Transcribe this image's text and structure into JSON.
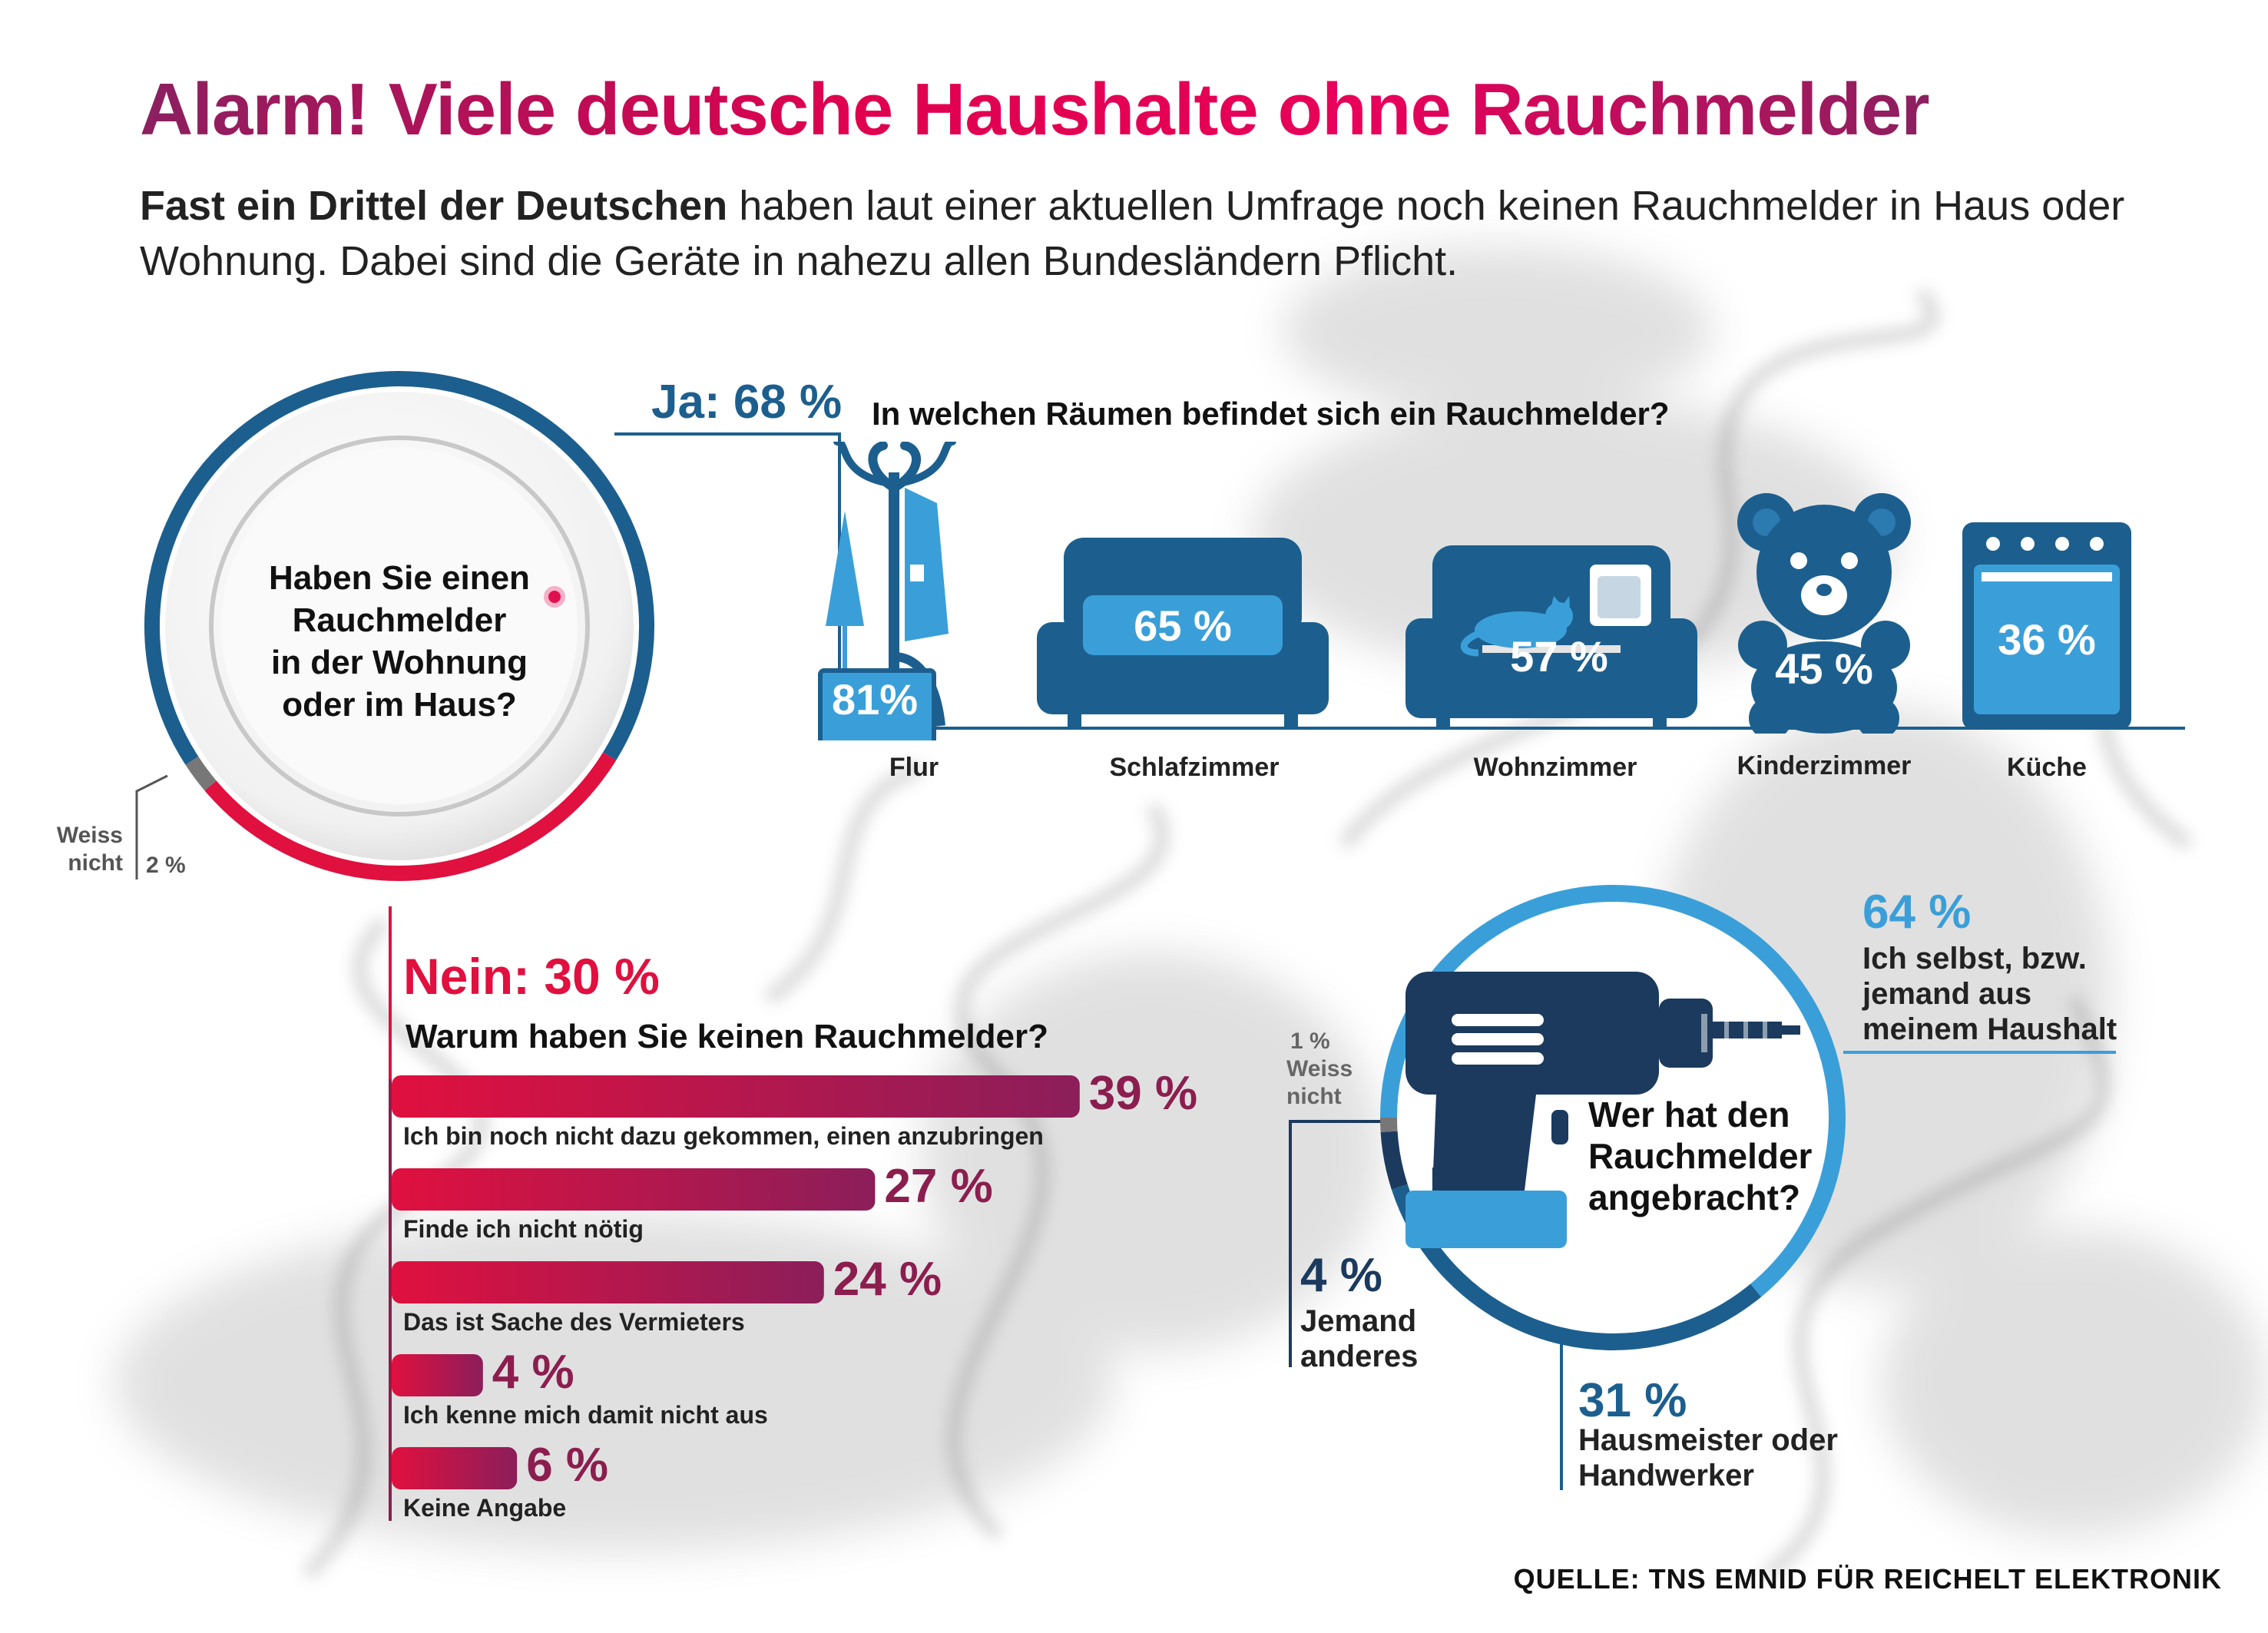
{
  "title": "Alarm! Viele deutsche Haushalte ohne Rauchmelder",
  "subtitle": {
    "lead": "Fast ein Drittel der Deutschen",
    "rest": " haben laut einer aktuellen Umfrage noch keinen Rauchmelder in Haus oder Wohnung. Dabei sind die Geräte in nahezu allen Bundesländern Pflicht."
  },
  "colors": {
    "light_blue": "#3a9fd9",
    "mid_blue": "#1c5f8e",
    "navy": "#1b3a5e",
    "red": "#e0103f",
    "plum": "#8b1e4f",
    "gray": "#777777"
  },
  "icons": [
    "coat-rack-icon",
    "umbrella-icon",
    "sofa-icon",
    "cat-icon",
    "teddy-bear-icon",
    "stove-icon",
    "drill-icon"
  ],
  "chart_data": [
    {
      "type": "pie",
      "question": [
        "Haben Sie einen",
        "Rauchmelder",
        "in der Wohnung",
        "oder im Haus?"
      ],
      "slices": [
        {
          "label": "Ja:",
          "pct_text": "68 %",
          "value": 68
        },
        {
          "label": "Nein:",
          "pct_text": "30 %",
          "value": 30
        },
        {
          "label": "Weiss nicht",
          "label_lines": [
            "Weiss",
            "nicht"
          ],
          "pct_text": "2 %",
          "value": 2
        }
      ]
    },
    {
      "type": "bar",
      "title": "In welchen Räumen befindet sich ein Rauchmelder?",
      "categories": [
        "Flur",
        "Schlafzimmer",
        "Wohnzimmer",
        "Kinderzimmer",
        "Küche"
      ],
      "values": [
        81,
        65,
        57,
        45,
        36
      ],
      "value_labels": [
        "81%",
        "65 %",
        "57 %",
        "45 %",
        "36 %"
      ]
    },
    {
      "type": "bar",
      "title": "Warum haben Sie keinen Rauchmelder?",
      "categories": [
        "Ich bin noch nicht dazu gekommen, einen anzubringen",
        "Finde ich nicht nötig",
        "Das ist Sache des Vermieters",
        "Ich kenne mich damit nicht aus",
        "Keine Angabe"
      ],
      "values": [
        39,
        27,
        24,
        4,
        6
      ],
      "value_labels": [
        "39 %",
        "27 %",
        "24 %",
        "4 %",
        "6 %"
      ]
    },
    {
      "type": "pie",
      "question": [
        "Wer hat den",
        "Rauchmelder",
        "angebracht?"
      ],
      "slices": [
        {
          "pct_text": "64 %",
          "label_lines": [
            "Ich selbst, bzw.",
            "jemand aus",
            "meinem Haushalt"
          ],
          "value": 64
        },
        {
          "pct_text": "31 %",
          "label_lines": [
            "Hausmeister oder",
            "Handwerker"
          ],
          "value": 31
        },
        {
          "pct_text": "4 %",
          "label_lines": [
            "Jemand",
            "anderes"
          ],
          "value": 4
        },
        {
          "pct_text": "1 %",
          "label_lines": [
            "Weiss",
            "nicht"
          ],
          "value": 1
        }
      ]
    }
  ],
  "source": "QUELLE: TNS EMNID FÜR REICHELT ELEKTRONIK"
}
